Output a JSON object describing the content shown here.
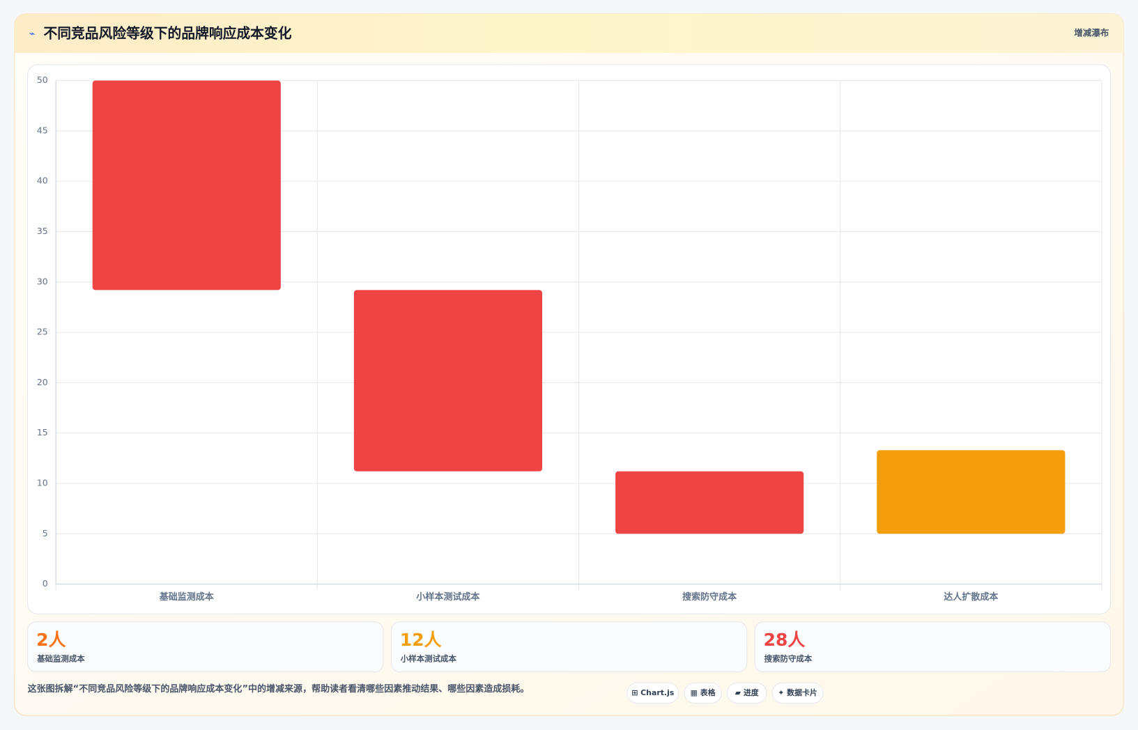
{
  "header": {
    "icon": "⌁",
    "title": "不同竞品风险等级下的品牌响应成本变化",
    "tag": "增减瀑布"
  },
  "chart_data": {
    "type": "bar",
    "categories": [
      "基础监测成本",
      "小样本测试成本",
      "搜索防守成本",
      "达人扩散成本"
    ],
    "values": [
      [
        29.2,
        50
      ],
      [
        11.2,
        29.2
      ],
      [
        5,
        11.2
      ],
      [
        5,
        13.3
      ]
    ],
    "colors": [
      "#ef4444",
      "#ef4444",
      "#ef4444",
      "#f59e0b"
    ],
    "ylim": [
      0,
      50
    ],
    "yticks": [
      0,
      5,
      10,
      15,
      20,
      25,
      30,
      35,
      40,
      45,
      50
    ],
    "grid": true
  },
  "stats": [
    {
      "value": "2人",
      "label": "基础监测成本",
      "color": "#f97316"
    },
    {
      "value": "12人",
      "label": "小样本测试成本",
      "color": "#f59e0b"
    },
    {
      "value": "28人",
      "label": "搜索防守成本",
      "color": "#ef4444"
    }
  ],
  "footnote": "这张图拆解“不同竞品风险等级下的品牌响应成本变化”中的增减来源，帮助读者看清哪些因素推动结果、哪些因素造成损耗。",
  "chips": [
    "⊞ Chart.js",
    "▦ 表格",
    "▰ 进度",
    "✦ 数据卡片"
  ]
}
